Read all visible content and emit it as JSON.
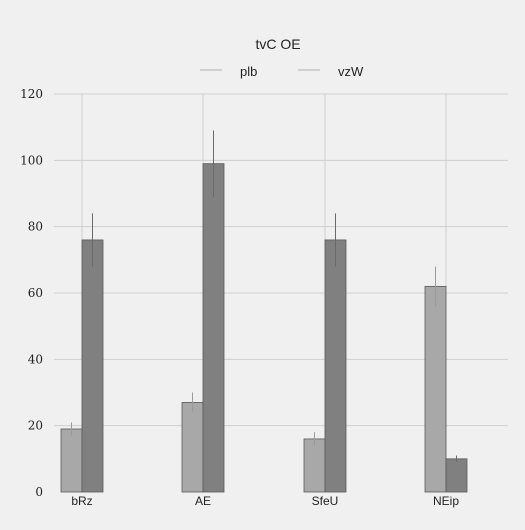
{
  "chart_data": {
    "type": "bar",
    "title": "tvC OE",
    "xlabel": "",
    "ylabel": "",
    "categories": [
      "bRz",
      "AE",
      "SfeU",
      "NEip"
    ],
    "series": [
      {
        "name": "plb",
        "values": [
          19,
          27,
          16,
          62
        ],
        "errors": [
          2,
          3,
          2,
          6
        ],
        "color": "#a8a8a8"
      },
      {
        "name": "vzW",
        "values": [
          76,
          99,
          76,
          10
        ],
        "errors": [
          8,
          10,
          8,
          1
        ],
        "color": "#808080"
      }
    ],
    "ylim": [
      0,
      120
    ],
    "yticks": [
      0,
      20,
      40,
      60,
      80,
      100,
      120
    ],
    "grid": true,
    "legend": "top-center"
  }
}
